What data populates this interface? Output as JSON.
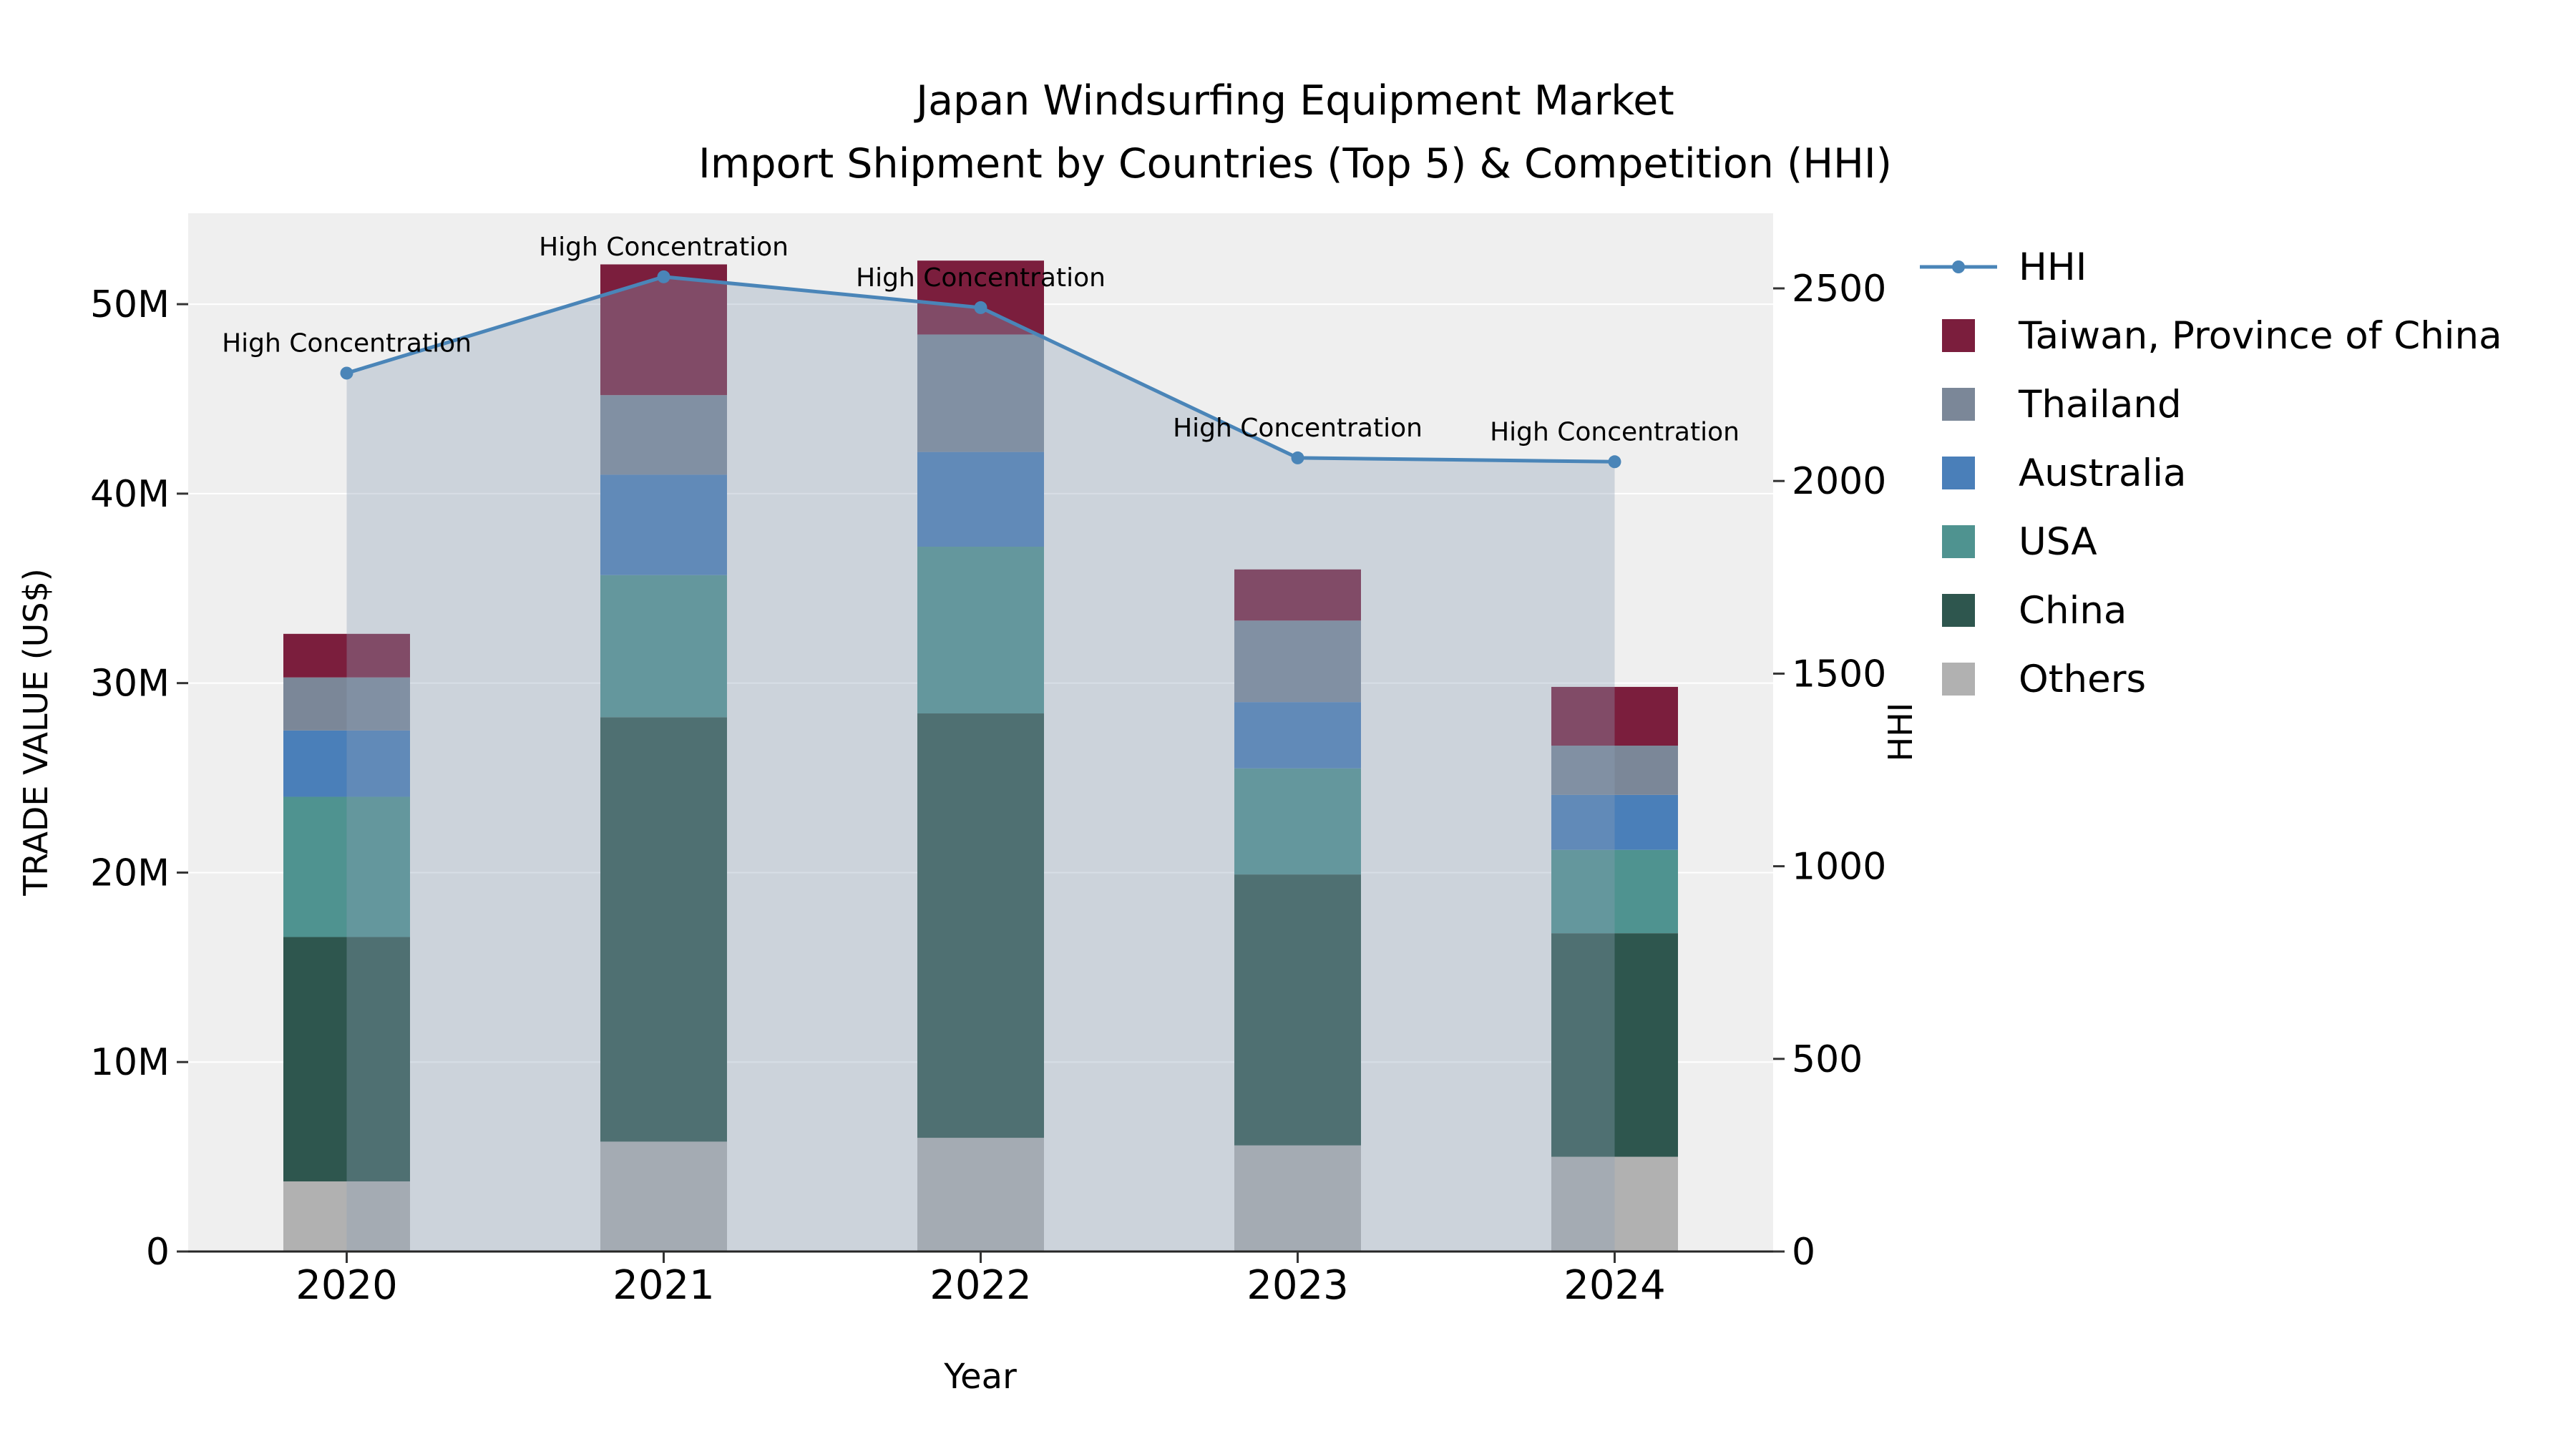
{
  "title": {
    "line1": "Japan Windsurfing Equipment Market",
    "line2": "Import Shipment by Countries (Top 5) & Competition (HHI)"
  },
  "chart_data": {
    "type": "stacked-bar+line",
    "categories": [
      "2020",
      "2021",
      "2022",
      "2023",
      "2024"
    ],
    "unit": "million US$",
    "bar_series": [
      {
        "name": "Others",
        "color": "#b1b1b1",
        "values": [
          3.7,
          5.8,
          6.0,
          5.6,
          5.0
        ]
      },
      {
        "name": "China",
        "color": "#2e564e",
        "values": [
          12.9,
          22.4,
          22.4,
          14.3,
          11.8
        ]
      },
      {
        "name": "USA",
        "color": "#4f9390",
        "values": [
          7.4,
          7.5,
          8.8,
          5.6,
          4.4
        ]
      },
      {
        "name": "Australia",
        "color": "#4a7fb9",
        "values": [
          3.5,
          5.3,
          5.0,
          3.5,
          2.9
        ]
      },
      {
        "name": "Thailand",
        "color": "#7b8798",
        "values": [
          2.8,
          4.2,
          6.2,
          4.3,
          2.6
        ]
      },
      {
        "name": "Taiwan, Province of China",
        "color": "#7b1e3d",
        "values": [
          2.3,
          6.9,
          3.9,
          2.7,
          3.1
        ]
      }
    ],
    "line_series": {
      "name": "HHI",
      "axis": "right",
      "color": "#4a85b8",
      "values": [
        2280,
        2530,
        2450,
        2060,
        2050
      ],
      "area_fill": true
    },
    "annotations": [
      "High Concentration",
      "High Concentration",
      "High Concentration",
      "High Concentration",
      "High Concentration"
    ],
    "axes": {
      "x": {
        "label": "Year",
        "ticks": [
          "2020",
          "2021",
          "2022",
          "2023",
          "2024"
        ]
      },
      "left": {
        "label": "TRADE VALUE (US$)",
        "tick_values": [
          0,
          10,
          20,
          30,
          40,
          50
        ],
        "tick_labels": [
          "0",
          "10M",
          "20M",
          "30M",
          "40M",
          "50M"
        ],
        "max": 54.8,
        "ylim": [
          0,
          54.8
        ]
      },
      "right": {
        "label": "HHI",
        "tick_values": [
          0,
          500,
          1000,
          1500,
          2000,
          2500
        ],
        "tick_labels": [
          "0",
          "500",
          "1000",
          "1500",
          "2000",
          "2500"
        ],
        "max": 2695,
        "ylim": [
          0,
          2695
        ]
      }
    },
    "colors": {
      "plot_bg": "#efefef",
      "grid": "#ffffff",
      "area": "#8ba0b8",
      "spine": "#262626",
      "text": "#000000"
    },
    "grid": true,
    "legend_position": "right"
  },
  "legend": {
    "items": [
      {
        "label": "HHI",
        "type": "line",
        "color": "#4a85b8"
      },
      {
        "label": "Taiwan, Province of China",
        "type": "patch",
        "color": "#7b1e3d"
      },
      {
        "label": "Thailand",
        "type": "patch",
        "color": "#7b8798"
      },
      {
        "label": "Australia",
        "type": "patch",
        "color": "#4a7fb9"
      },
      {
        "label": "USA",
        "type": "patch",
        "color": "#4f9390"
      },
      {
        "label": "China",
        "type": "patch",
        "color": "#2e564e"
      },
      {
        "label": "Others",
        "type": "patch",
        "color": "#b1b1b1"
      }
    ]
  }
}
